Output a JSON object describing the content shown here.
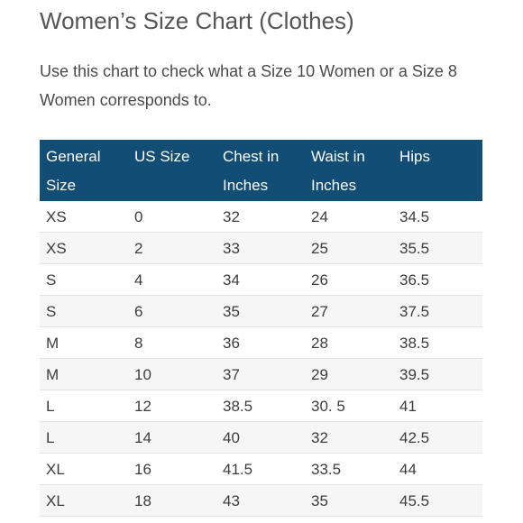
{
  "title": "Women’s Size Chart (Clothes)",
  "intro": "Use this chart to check what a Size 10 Women or a Size 8 Women corresponds to.",
  "colors": {
    "header_background": "#124d75",
    "header_text": "#ffffff",
    "title_text": "#555555"
  },
  "table": {
    "headers": [
      "General Size",
      "US Size",
      "Chest in Inches",
      "Waist in Inches",
      "Hips"
    ],
    "rows": [
      [
        "XS",
        "0",
        "32",
        "24",
        "34.5"
      ],
      [
        "XS",
        "2",
        "33",
        "25",
        "35.5"
      ],
      [
        "S",
        "4",
        "34",
        "26",
        "36.5"
      ],
      [
        "S",
        "6",
        "35",
        "27",
        "37.5"
      ],
      [
        "M",
        "8",
        "36",
        "28",
        "38.5"
      ],
      [
        "M",
        "10",
        "37",
        "29",
        "39.5"
      ],
      [
        "L",
        "12",
        "38.5",
        "30. 5",
        "41"
      ],
      [
        "L",
        "14",
        "40",
        "32",
        "42.5"
      ],
      [
        "XL",
        "16",
        "41.5",
        "33.5",
        "44"
      ],
      [
        "XL",
        "18",
        "43",
        "35",
        "45.5"
      ]
    ]
  }
}
